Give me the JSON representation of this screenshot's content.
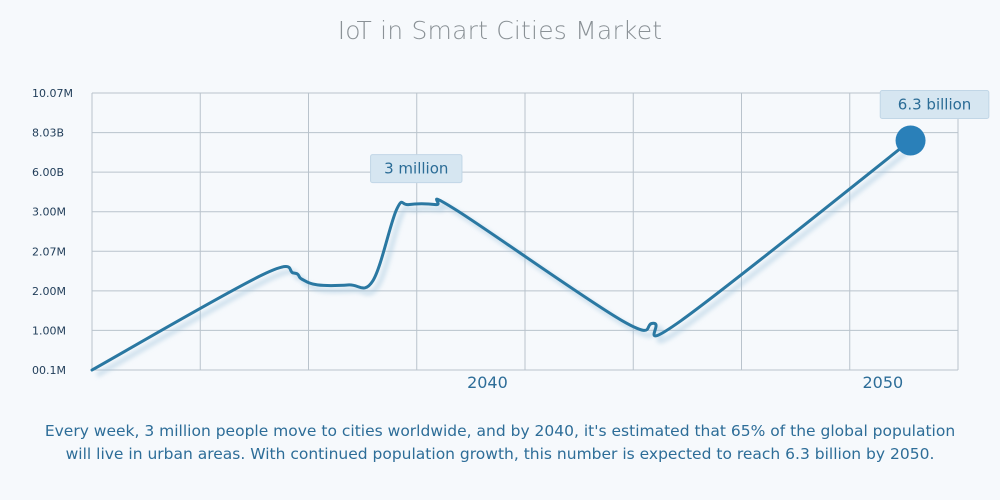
{
  "title": "IoT in Smart Cities Market",
  "caption": "Every week, 3 million people move to cities worldwide, and by 2040, it's estimated that 65% of the global population will live in urban areas. With continued population growth, this number is expected to reach 6.3 billion by 2050.",
  "colors": {
    "line": "#2a78a2",
    "marker": "#2a80b9",
    "grid": "#b9c3cc",
    "callout_bg": "#d6e6f1",
    "text": "#2d6d98"
  },
  "chart_data": {
    "type": "line",
    "title": "IoT in Smart Cities Market",
    "y_tick_labels": [
      "00.1M",
      "1.00M",
      "2.00M",
      "2.07M",
      "3.00M",
      "6.00B",
      "8.03B",
      "10.07M"
    ],
    "x_tick_labels": [
      "2040",
      "2050"
    ],
    "series": [
      {
        "points": [
          {
            "x": 2030.0,
            "y": 0.0
          },
          {
            "x": 2034.3,
            "y": 2.4
          },
          {
            "x": 2035.1,
            "y": 2.45
          },
          {
            "x": 2035.3,
            "y": 2.3
          },
          {
            "x": 2035.7,
            "y": 2.15
          },
          {
            "x": 2036.5,
            "y": 2.15
          },
          {
            "x": 2037.1,
            "y": 2.25
          },
          {
            "x": 2037.7,
            "y": 4.05
          },
          {
            "x": 2038.0,
            "y": 4.18
          },
          {
            "x": 2038.7,
            "y": 4.18
          },
          {
            "x": 2039.2,
            "y": 4.05
          },
          {
            "x": 2043.4,
            "y": 1.25
          },
          {
            "x": 2044.2,
            "y": 1.18
          },
          {
            "x": 2044.9,
            "y": 1.25
          },
          {
            "x": 2050.7,
            "y": 5.8
          }
        ]
      }
    ],
    "annotations": [
      {
        "label": "3 million",
        "x": 2038.2,
        "y": 4.18
      },
      {
        "label": "6.3 billion",
        "x": 2050.7,
        "y": 5.8
      }
    ],
    "grid": true
  }
}
